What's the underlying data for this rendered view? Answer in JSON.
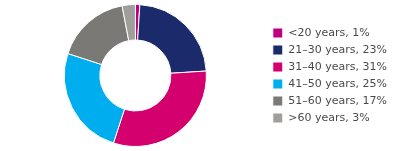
{
  "chart_data": {
    "type": "doughnut",
    "categories": [
      "<20 years, 1%",
      "21–30 years, 23%",
      "31–40 years, 31%",
      "41–50 years, 25%",
      "51–60 years, 17%",
      ">60 years, 3%"
    ],
    "values": [
      1,
      23,
      31,
      25,
      17,
      3
    ],
    "colors": [
      "#be0080",
      "#1b2a6b",
      "#d4006e",
      "#00aeef",
      "#7a7975",
      "#a09e9b"
    ],
    "legend": "right"
  }
}
